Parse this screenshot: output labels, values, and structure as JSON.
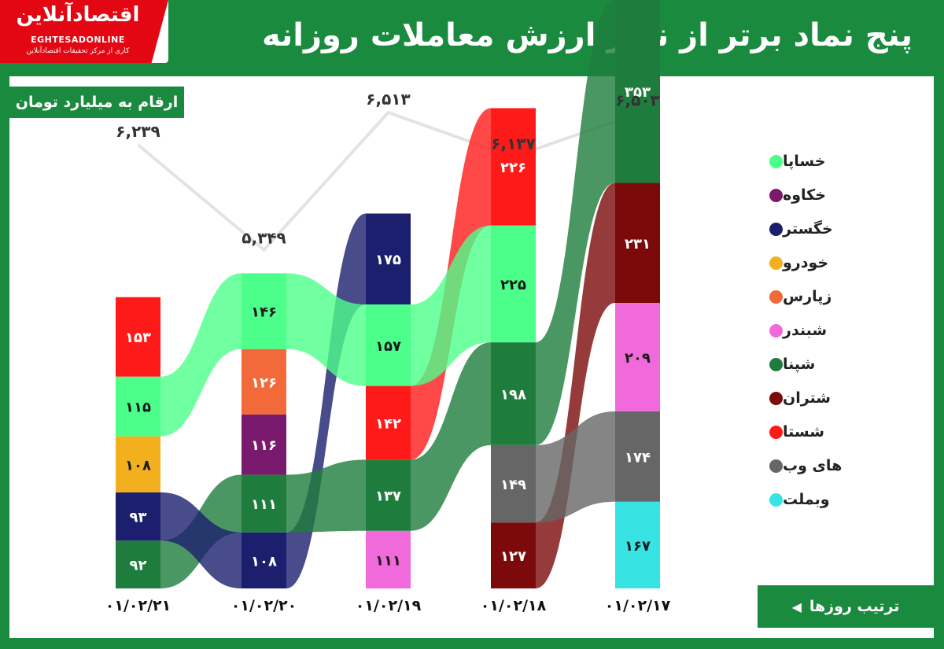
{
  "logo": {
    "fa": "اقتصادآنلاین",
    "en": "EGHTESADONLINE",
    "sub": "کاری از مرکز تحقیقات اقتصادآنلاین"
  },
  "title": "پنج نماد برتر از نظر ارزش معاملات روزانه",
  "units_label": "ارقام به میلیارد تومان",
  "order_label": "ترتیب روزها",
  "colors": {
    "frame": "#1a8a3e",
    "border": "#d9001b",
    "totals_line": "#e3e3e3"
  },
  "legend": [
    {
      "name": "خساپا",
      "color": "#4cff8a"
    },
    {
      "name": "خکاوه",
      "color": "#7a1a6e"
    },
    {
      "name": "خگستر",
      "color": "#1b1f6e"
    },
    {
      "name": "خودرو",
      "color": "#f2b01e"
    },
    {
      "name": "زپارس",
      "color": "#f26a3a"
    },
    {
      "name": "شبندر",
      "color": "#f06adc"
    },
    {
      "name": "شپنا",
      "color": "#1e7d3c"
    },
    {
      "name": "شتران",
      "color": "#7c0a0a"
    },
    {
      "name": "شستا",
      "color": "#ff1a1a"
    },
    {
      "name": "های وب",
      "color": "#666666"
    },
    {
      "name": "وبملت",
      "color": "#38e3e3"
    }
  ],
  "chart_data": {
    "type": "bar",
    "stacked": true,
    "categories": [
      "01/02/21",
      "01/02/20",
      "01/02/19",
      "01/02/18",
      "01/02/17"
    ],
    "tick_labels": [
      "۰۱/۰۲/۲۱",
      "۰۱/۰۲/۲۰",
      "۰۱/۰۲/۱۹",
      "۰۱/۰۲/۱۸",
      "۰۱/۰۲/۱۷"
    ],
    "columns": [
      {
        "stack": [
          {
            "name": "شپنا",
            "value": 92,
            "label": "۹۲"
          },
          {
            "name": "خگستر",
            "value": 93,
            "label": "۹۳"
          },
          {
            "name": "خودرو",
            "value": 108,
            "label": "۱۰۸"
          },
          {
            "name": "خساپا",
            "value": 115,
            "label": "۱۱۵"
          },
          {
            "name": "شستا",
            "value": 153,
            "label": "۱۵۳"
          }
        ]
      },
      {
        "stack": [
          {
            "name": "خگستر",
            "value": 108,
            "label": "۱۰۸"
          },
          {
            "name": "شپنا",
            "value": 111,
            "label": "۱۱۱"
          },
          {
            "name": "خکاوه",
            "value": 116,
            "label": "۱۱۶"
          },
          {
            "name": "زپارس",
            "value": 126,
            "label": "۱۲۶"
          },
          {
            "name": "خساپا",
            "value": 146,
            "label": "۱۴۶"
          }
        ]
      },
      {
        "stack": [
          {
            "name": "شبندر",
            "value": 111,
            "label": "۱۱۱"
          },
          {
            "name": "شپنا",
            "value": 137,
            "label": "۱۳۷"
          },
          {
            "name": "شستا",
            "value": 142,
            "label": "۱۴۲"
          },
          {
            "name": "خساپا",
            "value": 157,
            "label": "۱۵۷"
          },
          {
            "name": "خگستر",
            "value": 175,
            "label": "۱۷۵"
          }
        ]
      },
      {
        "stack": [
          {
            "name": "شتران",
            "value": 127,
            "label": "۱۲۷"
          },
          {
            "name": "های وب",
            "value": 149,
            "label": "۱۴۹"
          },
          {
            "name": "شپنا",
            "value": 198,
            "label": "۱۹۸"
          },
          {
            "name": "خساپا",
            "value": 225,
            "label": "۲۲۵"
          },
          {
            "name": "شستا",
            "value": 226,
            "label": "۲۲۶"
          }
        ]
      },
      {
        "stack": [
          {
            "name": "وبملت",
            "value": 167,
            "label": "۱۶۷"
          },
          {
            "name": "های وب",
            "value": 174,
            "label": "۱۷۴"
          },
          {
            "name": "شبندر",
            "value": 209,
            "label": "۲۰۹"
          },
          {
            "name": "شتران",
            "value": 231,
            "label": "۲۳۱"
          },
          {
            "name": "شپنا",
            "value": 353,
            "label": "۳۵۳"
          }
        ]
      }
    ],
    "totals": {
      "values": [
        6239,
        5349,
        6513,
        6137,
        6503
      ],
      "labels": [
        "۶,۲۳۹",
        "۵,۳۴۹",
        "۶,۵۱۳",
        "۶,۱۳۷",
        "۶,۵۰۳"
      ]
    }
  }
}
